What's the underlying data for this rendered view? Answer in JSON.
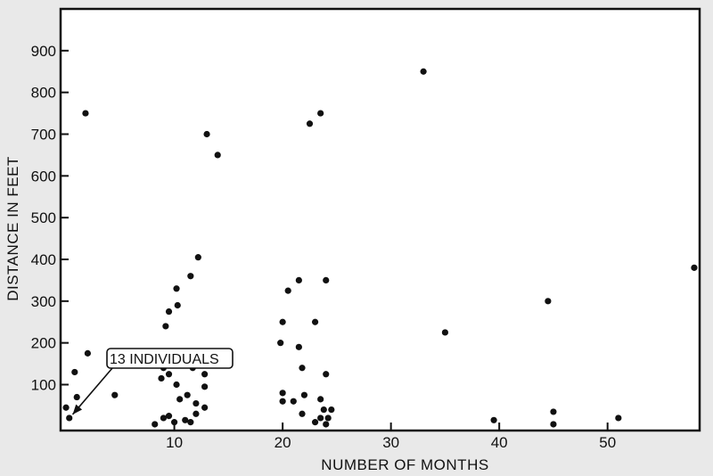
{
  "chart_data": {
    "type": "scatter",
    "xlabel": "NUMBER OF MONTHS",
    "ylabel": "DISTANCE IN FEET",
    "xlim": [
      -0.5,
      58.5
    ],
    "ylim": [
      -10,
      1000
    ],
    "x_ticks": [
      10,
      20,
      30,
      40,
      50
    ],
    "y_ticks": [
      100,
      200,
      300,
      400,
      500,
      600,
      700,
      800,
      900
    ],
    "grid": false,
    "annotation": {
      "text": "13 INDIVIDUALS",
      "x": 0.2,
      "y": 20
    },
    "points": [
      {
        "x": 0,
        "y": 45
      },
      {
        "x": 0.3,
        "y": 20
      },
      {
        "x": 1,
        "y": 70
      },
      {
        "x": 0.8,
        "y": 130
      },
      {
        "x": 2,
        "y": 175
      },
      {
        "x": 1.8,
        "y": 750
      },
      {
        "x": 4.5,
        "y": 75
      },
      {
        "x": 8.2,
        "y": 5
      },
      {
        "x": 9,
        "y": 20
      },
      {
        "x": 9.5,
        "y": 25
      },
      {
        "x": 10,
        "y": 10
      },
      {
        "x": 11,
        "y": 15
      },
      {
        "x": 11.5,
        "y": 10
      },
      {
        "x": 12,
        "y": 30
      },
      {
        "x": 12.8,
        "y": 45
      },
      {
        "x": 10.5,
        "y": 65
      },
      {
        "x": 12,
        "y": 55
      },
      {
        "x": 11.2,
        "y": 75
      },
      {
        "x": 12.8,
        "y": 95
      },
      {
        "x": 8.8,
        "y": 115
      },
      {
        "x": 9.5,
        "y": 125
      },
      {
        "x": 9,
        "y": 140
      },
      {
        "x": 10.2,
        "y": 100
      },
      {
        "x": 11.7,
        "y": 140
      },
      {
        "x": 12.8,
        "y": 125
      },
      {
        "x": 9.2,
        "y": 240
      },
      {
        "x": 9.5,
        "y": 275
      },
      {
        "x": 10.3,
        "y": 290
      },
      {
        "x": 10.2,
        "y": 330
      },
      {
        "x": 11.5,
        "y": 360
      },
      {
        "x": 12.2,
        "y": 405
      },
      {
        "x": 13,
        "y": 700
      },
      {
        "x": 14,
        "y": 650
      },
      {
        "x": 19.8,
        "y": 200
      },
      {
        "x": 20,
        "y": 250
      },
      {
        "x": 20.5,
        "y": 325
      },
      {
        "x": 21.5,
        "y": 350
      },
      {
        "x": 22.5,
        "y": 725
      },
      {
        "x": 23.5,
        "y": 750
      },
      {
        "x": 21.5,
        "y": 190
      },
      {
        "x": 21.8,
        "y": 140
      },
      {
        "x": 23,
        "y": 250
      },
      {
        "x": 24,
        "y": 350
      },
      {
        "x": 24,
        "y": 125
      },
      {
        "x": 20,
        "y": 80
      },
      {
        "x": 20,
        "y": 60
      },
      {
        "x": 21,
        "y": 60
      },
      {
        "x": 22,
        "y": 75
      },
      {
        "x": 23.5,
        "y": 65
      },
      {
        "x": 21.8,
        "y": 30
      },
      {
        "x": 23,
        "y": 10
      },
      {
        "x": 23.5,
        "y": 20
      },
      {
        "x": 23.8,
        "y": 40
      },
      {
        "x": 24,
        "y": 5
      },
      {
        "x": 24.2,
        "y": 20
      },
      {
        "x": 24.5,
        "y": 40
      },
      {
        "x": 33,
        "y": 850
      },
      {
        "x": 35,
        "y": 225
      },
      {
        "x": 39.5,
        "y": 15
      },
      {
        "x": 44.5,
        "y": 300
      },
      {
        "x": 45,
        "y": 35
      },
      {
        "x": 45,
        "y": 5
      },
      {
        "x": 51,
        "y": 20
      },
      {
        "x": 58,
        "y": 380
      }
    ]
  }
}
